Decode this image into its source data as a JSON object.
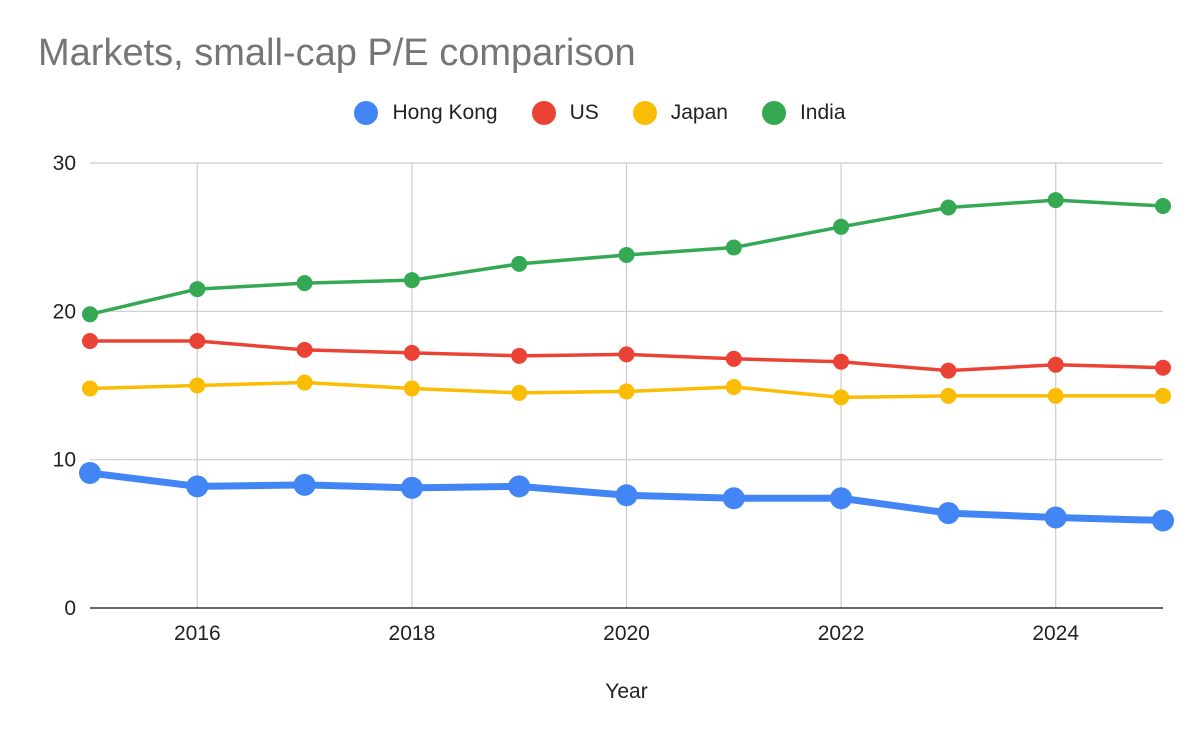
{
  "chart_data": {
    "type": "line",
    "title": "Markets, small-cap P/E comparison",
    "xlabel": "Year",
    "ylabel": "",
    "xlim": [
      2015,
      2025
    ],
    "ylim": [
      0,
      30
    ],
    "x_ticks": [
      2016,
      2018,
      2020,
      2022,
      2024
    ],
    "y_ticks": [
      0,
      10,
      20,
      30
    ],
    "grid": true,
    "legend_position": "top-center",
    "x": [
      2015,
      2016,
      2017,
      2018,
      2019,
      2020,
      2021,
      2022,
      2023,
      2024,
      2025
    ],
    "series": [
      {
        "name": "Hong Kong",
        "color": "#4285F4",
        "emphasis": "bold",
        "values": [
          9.1,
          8.2,
          8.3,
          8.1,
          8.2,
          7.6,
          7.4,
          7.4,
          6.4,
          6.1,
          5.9
        ]
      },
      {
        "name": "US",
        "color": "#EA4335",
        "emphasis": "normal",
        "values": [
          18.0,
          18.0,
          17.4,
          17.2,
          17.0,
          17.1,
          16.8,
          16.6,
          16.0,
          16.4,
          16.2
        ]
      },
      {
        "name": "Japan",
        "color": "#FBBC04",
        "emphasis": "normal",
        "values": [
          14.8,
          15.0,
          15.2,
          14.8,
          14.5,
          14.6,
          14.9,
          14.2,
          14.3,
          14.3,
          14.3
        ]
      },
      {
        "name": "India",
        "color": "#34A853",
        "emphasis": "normal",
        "values": [
          19.8,
          21.5,
          21.9,
          22.1,
          23.2,
          23.8,
          24.3,
          25.7,
          27.0,
          27.5,
          27.1
        ]
      }
    ]
  }
}
